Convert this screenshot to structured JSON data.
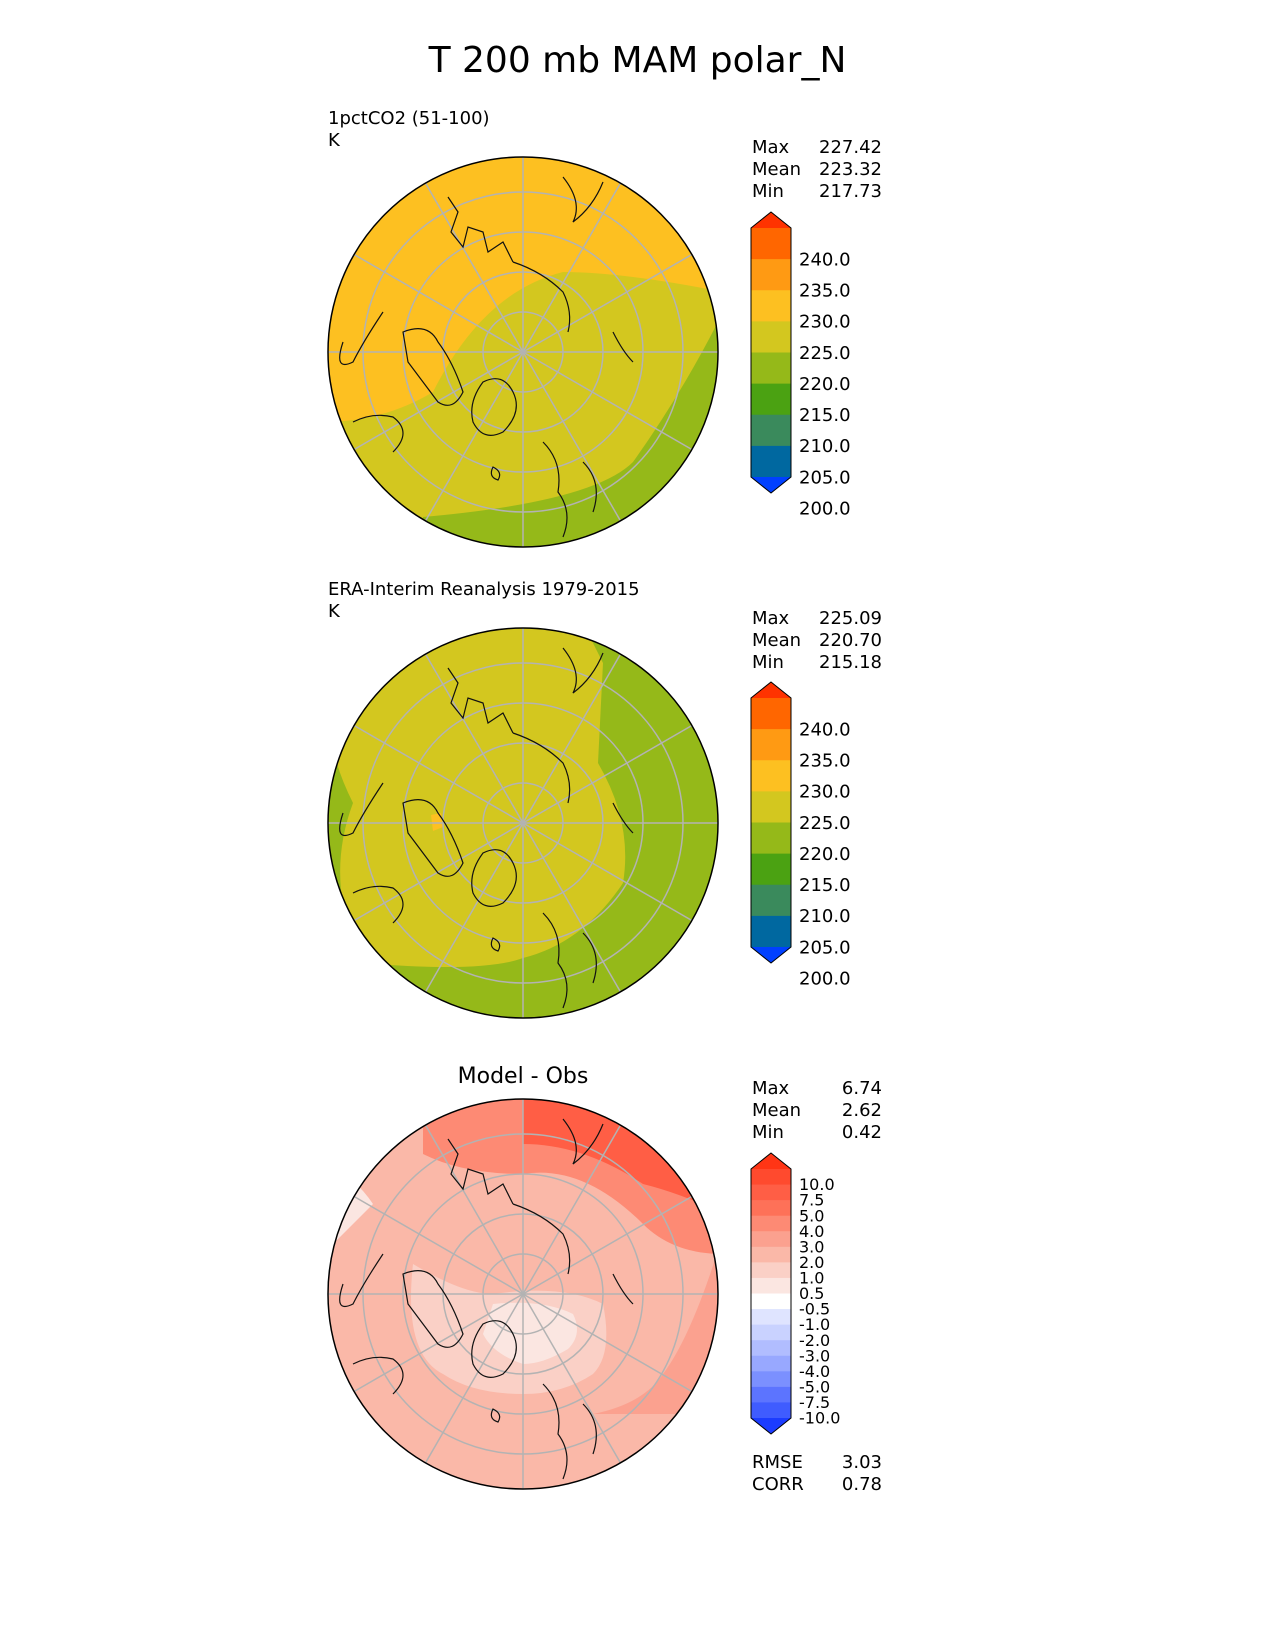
{
  "figure": {
    "title": "T 200 mb MAM polar_N"
  },
  "panels": [
    {
      "id": "model",
      "title": "1pctCO2 (51-100)",
      "units": "K",
      "stats": [
        {
          "label": "Max",
          "value": "227.42"
        },
        {
          "label": "Mean",
          "value": "223.32"
        },
        {
          "label": "Min",
          "value": "217.73"
        }
      ]
    },
    {
      "id": "obs",
      "title": "ERA-Interim Reanalysis 1979-2015",
      "units": "K",
      "stats": [
        {
          "label": "Max",
          "value": "225.09"
        },
        {
          "label": "Mean",
          "value": "220.70"
        },
        {
          "label": "Min",
          "value": "215.18"
        }
      ]
    },
    {
      "id": "diff",
      "title": "Model - Obs",
      "stats": [
        {
          "label": "Max",
          "value": "6.74"
        },
        {
          "label": "Mean",
          "value": "2.62"
        },
        {
          "label": "Min",
          "value": "0.42"
        }
      ],
      "extra_stats": [
        {
          "label": "RMSE",
          "value": "3.03"
        },
        {
          "label": "CORR",
          "value": "0.78"
        }
      ]
    }
  ],
  "colorbars": {
    "absolute": {
      "tick_labels": [
        "240.0",
        "235.0",
        "230.0",
        "225.0",
        "220.0",
        "215.0",
        "210.0",
        "205.0",
        "200.0"
      ],
      "colors": [
        "#ff3300",
        "#ff6600",
        "#ff9a13",
        "#fdc021",
        "#d3c71f",
        "#95b919",
        "#4ba212",
        "#3a8a5c",
        "#0068a0",
        "#0040ff"
      ]
    },
    "difference": {
      "tick_labels": [
        "10.0",
        "7.5",
        "5.0",
        "4.0",
        "3.0",
        "2.0",
        "1.0",
        "0.5",
        "-0.5",
        "-1.0",
        "-2.0",
        "-3.0",
        "-4.0",
        "-5.0",
        "-7.5",
        "-10.0"
      ],
      "colors": [
        "#ff3515",
        "#ff4a2e",
        "#ff5e45",
        "#fe7158",
        "#fd8a74",
        "#fba18f",
        "#fab8a8",
        "#fad0c6",
        "#fbe6e1",
        "#ffffff",
        "#dfe4ff",
        "#c9d2ff",
        "#b1bdff",
        "#98a8ff",
        "#7b90ff",
        "#5c74ff",
        "#3f5cff",
        "#1b3cff"
      ]
    }
  },
  "chart_data": [
    {
      "type": "heatmap",
      "title": "1pctCO2 (51-100)",
      "units": "K",
      "projection": "north polar stereographic",
      "regions": [
        {
          "level": "225-230",
          "sector": "North America / Greenland / Arctic Canada"
        },
        {
          "level": "220-225",
          "sector": "Arctic Ocean, Eurasia, North Atlantic"
        },
        {
          "level": "215-220",
          "sector": "Scandinavia / Europe rim, east Eurasia rim"
        }
      ],
      "stats": {
        "max": 227.42,
        "mean": 223.32,
        "min": 217.73
      }
    },
    {
      "type": "heatmap",
      "title": "ERA-Interim Reanalysis 1979-2015",
      "units": "K",
      "projection": "north polar stereographic",
      "regions": [
        {
          "level": "220-225",
          "sector": "Arctic Ocean, North America, Greenland"
        },
        {
          "level": "215-220",
          "sector": "Eurasia / Europe band"
        },
        {
          "level": "225-230",
          "sector": "small patch over Canadian Archipelago"
        }
      ],
      "stats": {
        "max": 225.09,
        "mean": 220.7,
        "min": 215.18
      }
    },
    {
      "type": "heatmap",
      "title": "Model - Obs",
      "projection": "north polar stereographic",
      "regions": [
        {
          "level": "5.0-7.5",
          "sector": "North Pacific / Bering Strait"
        },
        {
          "level": "3.0-5.0",
          "sector": "East Siberia / Eurasian rim"
        },
        {
          "level": "1.0-3.0",
          "sector": "Most of the Arctic and North Atlantic"
        },
        {
          "level": "0.5-1.0",
          "sector": "North Atlantic / Greenland Sea"
        }
      ],
      "stats": {
        "max": 6.74,
        "mean": 2.62,
        "min": 0.42,
        "rmse": 3.03,
        "corr": 0.78
      }
    }
  ]
}
